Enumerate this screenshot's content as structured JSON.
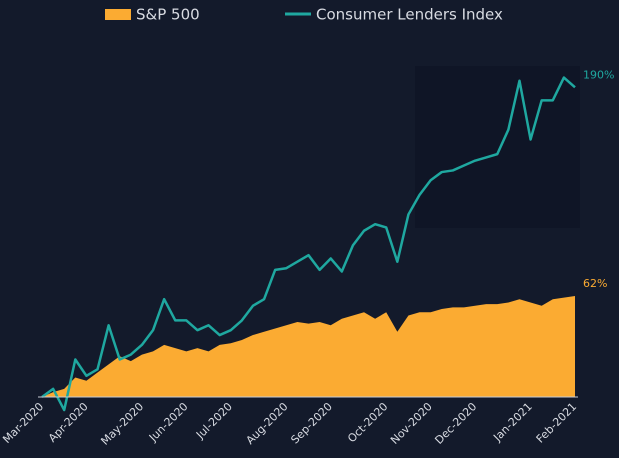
{
  "chart_data": {
    "type": "line",
    "categories": [
      "Mar-2020",
      null,
      null,
      null,
      "Apr-2020",
      null,
      null,
      null,
      null,
      "May-2020",
      null,
      null,
      null,
      "Jun-2020",
      null,
      null,
      null,
      "Jul-2020",
      null,
      null,
      null,
      null,
      "Aug-2020",
      null,
      null,
      null,
      "Sep-2020",
      null,
      null,
      null,
      null,
      "Oct-2020",
      null,
      null,
      null,
      "Nov-2020",
      null,
      null,
      null,
      "Dec-2020",
      null,
      null,
      null,
      null,
      "Jan-2021",
      null,
      null,
      null,
      "Feb-2021"
    ],
    "series": [
      {
        "name": "S&P 500",
        "color": "#fbab32",
        "kind": "area",
        "values": [
          0,
          3,
          5,
          12,
          10,
          15,
          20,
          25,
          22,
          26,
          28,
          32,
          30,
          28,
          30,
          28,
          32,
          33,
          35,
          38,
          40,
          42,
          44,
          46,
          45,
          46,
          44,
          48,
          50,
          52,
          48,
          52,
          40,
          50,
          52,
          52,
          54,
          55,
          55,
          56,
          57,
          57,
          58,
          60,
          58,
          56,
          60,
          61,
          62
        ],
        "value_labels": [
          null,
          null,
          null,
          null,
          null,
          null,
          null,
          null,
          null,
          null,
          null,
          null,
          null,
          null,
          null,
          null,
          null,
          null,
          null,
          null,
          null,
          null,
          null,
          null,
          null,
          null,
          null,
          null,
          null,
          null,
          null,
          null,
          null,
          null,
          null,
          null,
          null,
          null,
          null,
          null,
          null,
          null,
          null,
          null,
          null,
          null,
          null,
          null,
          "62%"
        ]
      },
      {
        "name": "Consumer Lenders Index",
        "color": "#1fa8a0",
        "kind": "line",
        "values": [
          0,
          5,
          -8,
          23,
          13,
          17,
          44,
          23,
          26,
          32,
          41,
          60,
          47,
          47,
          41,
          44,
          38,
          41,
          47,
          56,
          60,
          78,
          79,
          83,
          87,
          78,
          85,
          77,
          93,
          102,
          106,
          104,
          83,
          112,
          124,
          133,
          138,
          139,
          142,
          145,
          147,
          149,
          164,
          194,
          158,
          182,
          182,
          196,
          190
        ],
        "value_labels": [
          null,
          null,
          null,
          null,
          null,
          null,
          null,
          null,
          null,
          null,
          null,
          null,
          null,
          null,
          null,
          null,
          null,
          null,
          null,
          null,
          null,
          null,
          null,
          null,
          null,
          null,
          null,
          null,
          null,
          null,
          null,
          null,
          null,
          null,
          null,
          null,
          null,
          null,
          null,
          null,
          null,
          null,
          null,
          null,
          null,
          null,
          null,
          null,
          "190%"
        ]
      }
    ]
  }
}
